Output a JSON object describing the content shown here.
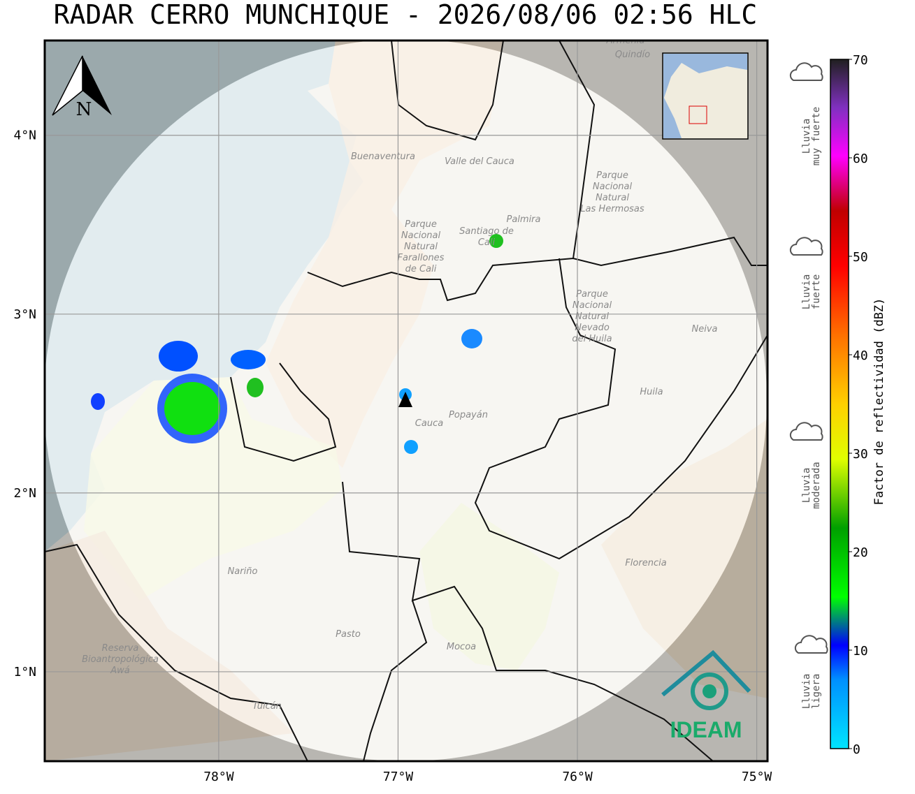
{
  "header": {
    "title": "RADAR CERRO MUNCHIQUE - 2026/08/06 02:56 HLC"
  },
  "map": {
    "lon_range": [
      -78.97,
      -74.94
    ],
    "lat_range": [
      0.5,
      4.53
    ],
    "lon_ticks": [
      {
        "value": -78,
        "label": "78°W"
      },
      {
        "value": -77,
        "label": "77°W"
      },
      {
        "value": -76,
        "label": "76°W"
      },
      {
        "value": -75,
        "label": "75°W"
      }
    ],
    "lat_ticks": [
      {
        "value": 4,
        "label": "4°N"
      },
      {
        "value": 3,
        "label": "3°N"
      },
      {
        "value": 2,
        "label": "2°N"
      },
      {
        "value": 1,
        "label": "1°N"
      }
    ],
    "north": "N",
    "places": [
      {
        "lines": [
          "Buenaventura"
        ]
      },
      {
        "lines": [
          "Valle del Cauca"
        ]
      },
      {
        "lines": [
          "Palmira"
        ]
      },
      {
        "lines": [
          "Santiago de",
          "Cali"
        ]
      },
      {
        "lines": [
          "Parque",
          "Nacional",
          "Natural",
          "Farallones",
          "de Cali"
        ]
      },
      {
        "lines": [
          "Parque",
          "Nacional",
          "Natural",
          "Las Hermosas"
        ]
      },
      {
        "lines": [
          "Parque",
          "Nacional",
          "Natural",
          "Nevado",
          "del Huila"
        ]
      },
      {
        "lines": [
          "Neiva"
        ]
      },
      {
        "lines": [
          "Huila"
        ]
      },
      {
        "lines": [
          "Cauca"
        ]
      },
      {
        "lines": [
          "Popayán"
        ]
      },
      {
        "lines": [
          "Nariño"
        ]
      },
      {
        "lines": [
          "Pasto"
        ]
      },
      {
        "lines": [
          "Mocoa"
        ]
      },
      {
        "lines": [
          "Florencia"
        ]
      },
      {
        "lines": [
          "Reserva",
          "Bioantropológica",
          "Awá"
        ]
      },
      {
        "lines": [
          "Tulcán"
        ]
      },
      {
        "lines": [
          "Armenia"
        ]
      },
      {
        "lines": [
          "Quindío"
        ]
      }
    ]
  },
  "colorbar": {
    "label": "Factor de reflectividad (dBZ)",
    "range": [
      0,
      70
    ],
    "ticks": [
      0,
      10,
      20,
      30,
      40,
      50,
      60,
      70
    ]
  },
  "legend": {
    "categories": [
      {
        "lines": [
          "Lluvia",
          "muy fuerte"
        ]
      },
      {
        "lines": [
          "Lluvia",
          "fuerte"
        ]
      },
      {
        "lines": [
          "Lluvia",
          "moderada"
        ]
      },
      {
        "lines": [
          "Lluvia",
          "ligera"
        ]
      }
    ]
  },
  "logo": "IDEAM"
}
